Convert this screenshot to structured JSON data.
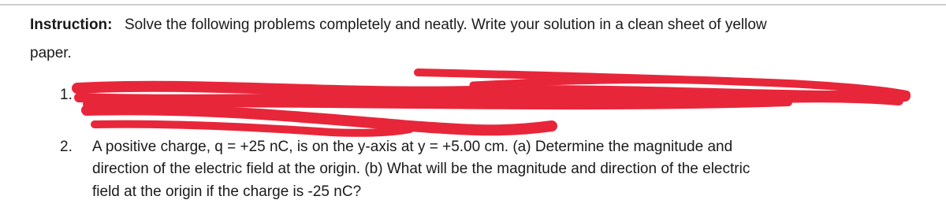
{
  "instruction": {
    "label": "Instruction:",
    "lines": [
      "Solve the following problems completely and neatly. Write your solution in a clean sheet of yellow",
      "paper."
    ]
  },
  "problems": [
    {
      "number": "1."
    },
    {
      "number": "2.",
      "lines": [
        "A positive charge, q = +25 nC, is on the y-axis at y = +5.00 cm. (a) Determine the magnitude and",
        "direction of the electric field at the origin. (b) What will be the magnitude and direction of the electric",
        "field at the origin if the charge is -25 nC?"
      ]
    }
  ]
}
